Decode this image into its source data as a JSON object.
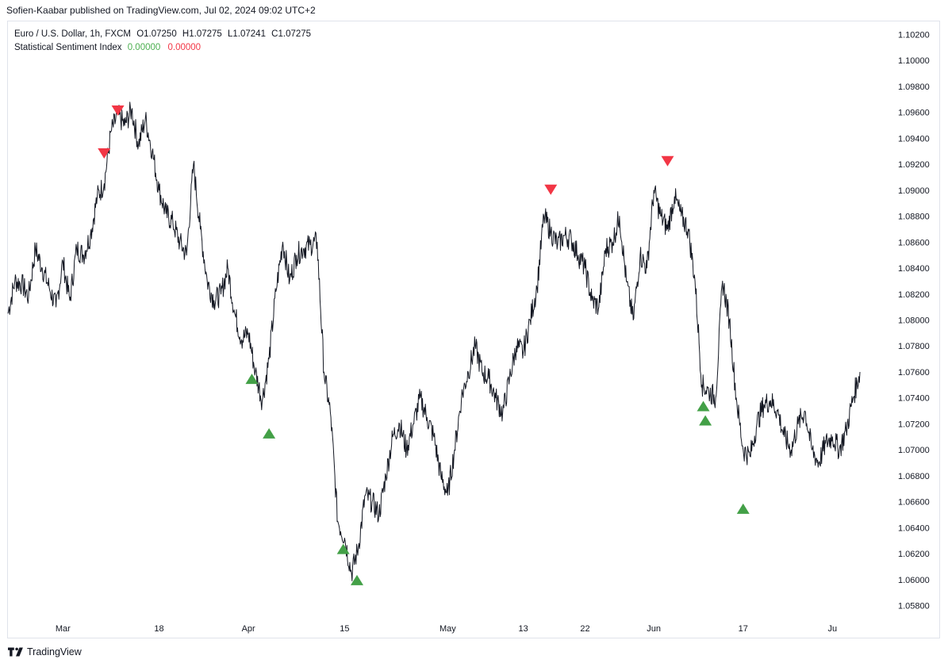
{
  "header": {
    "published_by": "Sofien-Kaabar published on TradingView.com, Jul 02, 2024 09:02 UTC+2"
  },
  "legend": {
    "symbol": "Euro / U.S. Dollar, 1h, FXCM",
    "ohlc": {
      "o": "O1.07250",
      "h": "H1.07275",
      "l": "L1.07241",
      "c": "C1.07275"
    },
    "indicator_name": "Statistical Sentiment Index",
    "indicator_value_1": "0.00000",
    "indicator_value_2": "0.00000"
  },
  "footer": {
    "brand": "TradingView"
  },
  "colors": {
    "line": "#131722",
    "bull": "#43a047",
    "bear": "#f23645",
    "grid": "#e0e3eb"
  },
  "chart_data": {
    "type": "line",
    "y_ticks": [
      "1.10200",
      "1.10000",
      "1.09800",
      "1.09600",
      "1.09400",
      "1.09200",
      "1.09000",
      "1.08800",
      "1.08600",
      "1.08400",
      "1.08200",
      "1.08000",
      "1.07800",
      "1.07600",
      "1.07400",
      "1.07200",
      "1.07000",
      "1.06800",
      "1.06600",
      "1.06400",
      "1.06200",
      "1.06000",
      "1.05800"
    ],
    "ylim": [
      1.057,
      1.103
    ],
    "xlim": [
      0,
      127
    ],
    "x_ticks": [
      {
        "label": "Mar",
        "x": 8
      },
      {
        "label": "18",
        "x": 22
      },
      {
        "label": "Apr",
        "x": 35
      },
      {
        "label": "15",
        "x": 49
      },
      {
        "label": "May",
        "x": 64
      },
      {
        "label": "13",
        "x": 75
      },
      {
        "label": "22",
        "x": 84
      },
      {
        "label": "Jun",
        "x": 94
      },
      {
        "label": "17",
        "x": 107
      },
      {
        "label": "Ju",
        "x": 120
      }
    ],
    "series": [
      {
        "values": [
          [
            0,
            1.0805
          ],
          [
            1,
            1.083
          ],
          [
            2,
            1.0828
          ],
          [
            3,
            1.0818
          ],
          [
            4,
            1.0855
          ],
          [
            5,
            1.084
          ],
          [
            6,
            1.0825
          ],
          [
            7,
            1.081
          ],
          [
            8,
            1.0845
          ],
          [
            9,
            1.0815
          ],
          [
            10,
            1.0855
          ],
          [
            11,
            1.085
          ],
          [
            12,
            1.0865
          ],
          [
            13,
            1.0895
          ],
          [
            14,
            1.0905
          ],
          [
            15,
            1.0945
          ],
          [
            16,
            1.0958
          ],
          [
            17,
            1.095
          ],
          [
            18,
            1.0962
          ],
          [
            19,
            1.0935
          ],
          [
            20,
            1.0955
          ],
          [
            21,
            1.093
          ],
          [
            22,
            1.09
          ],
          [
            23,
            1.0882
          ],
          [
            24,
            1.0875
          ],
          [
            25,
            1.086
          ],
          [
            26,
            1.085
          ],
          [
            27,
            1.092
          ],
          [
            28,
            1.087
          ],
          [
            29,
            1.083
          ],
          [
            30,
            1.0815
          ],
          [
            31,
            1.082
          ],
          [
            32,
            1.084
          ],
          [
            33,
            1.0805
          ],
          [
            34,
            1.0785
          ],
          [
            35,
            1.079
          ],
          [
            36,
            1.076
          ],
          [
            37,
            1.0738
          ],
          [
            38,
            1.077
          ],
          [
            39,
            1.0822
          ],
          [
            40,
            1.086
          ],
          [
            41,
            1.083
          ],
          [
            42,
            1.085
          ],
          [
            43,
            1.0855
          ],
          [
            44,
            1.0858
          ],
          [
            45,
            1.086
          ],
          [
            46,
            1.076
          ],
          [
            47,
            1.0725
          ],
          [
            48,
            1.0645
          ],
          [
            49,
            1.0632
          ],
          [
            50,
            1.0605
          ],
          [
            51,
            1.0625
          ],
          [
            52,
            1.0665
          ],
          [
            53,
            1.066
          ],
          [
            54,
            1.065
          ],
          [
            55,
            1.068
          ],
          [
            56,
            1.071
          ],
          [
            57,
            1.072
          ],
          [
            58,
            1.07
          ],
          [
            59,
            1.072
          ],
          [
            60,
            1.074
          ],
          [
            61,
            1.0725
          ],
          [
            62,
            1.071
          ],
          [
            63,
            1.068
          ],
          [
            64,
            1.0665
          ],
          [
            65,
            1.07
          ],
          [
            66,
            1.074
          ],
          [
            67,
            1.076
          ],
          [
            68,
            1.078
          ],
          [
            69,
            1.076
          ],
          [
            70,
            1.0755
          ],
          [
            71,
            1.074
          ],
          [
            72,
            1.0728
          ],
          [
            73,
            1.0755
          ],
          [
            74,
            1.078
          ],
          [
            75,
            1.0775
          ],
          [
            76,
            1.08
          ],
          [
            77,
            1.0825
          ],
          [
            78,
            1.088
          ],
          [
            79,
            1.0868
          ],
          [
            80,
            1.0858
          ],
          [
            81,
            1.0865
          ],
          [
            82,
            1.0862
          ],
          [
            83,
            1.085
          ],
          [
            84,
            1.084
          ],
          [
            85,
            1.0815
          ],
          [
            86,
            1.081
          ],
          [
            87,
            1.0855
          ],
          [
            88,
            1.086
          ],
          [
            89,
            1.088
          ],
          [
            90,
            1.083
          ],
          [
            91,
            1.08
          ],
          [
            92,
            1.085
          ],
          [
            93,
            1.084
          ],
          [
            94,
            1.09
          ],
          [
            95,
            1.088
          ],
          [
            96,
            1.087
          ],
          [
            97,
            1.0895
          ],
          [
            98,
            1.088
          ],
          [
            99,
            1.087
          ],
          [
            100,
            1.083
          ],
          [
            101,
            1.075
          ],
          [
            102,
            1.0745
          ],
          [
            103,
            1.074
          ],
          [
            104,
            1.083
          ],
          [
            105,
            1.08
          ],
          [
            106,
            1.074
          ],
          [
            107,
            1.07
          ],
          [
            108,
            1.0695
          ],
          [
            109,
            1.072
          ],
          [
            110,
            1.0735
          ],
          [
            111,
            1.0738
          ],
          [
            112,
            1.073
          ],
          [
            113,
            1.071
          ],
          [
            114,
            1.07
          ],
          [
            115,
            1.072
          ],
          [
            116,
            1.073
          ],
          [
            117,
            1.07
          ],
          [
            118,
            1.069
          ],
          [
            119,
            1.0705
          ],
          [
            120,
            1.071
          ],
          [
            121,
            1.07
          ],
          [
            122,
            1.0715
          ],
          [
            123,
            1.074
          ],
          [
            124,
            1.076
          ]
        ]
      }
    ],
    "signals": [
      {
        "type": "sell",
        "x": 14,
        "y": 1.0928
      },
      {
        "type": "sell",
        "x": 16,
        "y": 1.0961
      },
      {
        "type": "buy",
        "x": 35.5,
        "y": 1.0755
      },
      {
        "type": "buy",
        "x": 38,
        "y": 1.0713
      },
      {
        "type": "buy",
        "x": 48.8,
        "y": 1.0624
      },
      {
        "type": "buy",
        "x": 50.8,
        "y": 1.06
      },
      {
        "type": "sell",
        "x": 79,
        "y": 1.09
      },
      {
        "type": "sell",
        "x": 96,
        "y": 1.0922
      },
      {
        "type": "buy",
        "x": 101.2,
        "y": 1.0734
      },
      {
        "type": "buy",
        "x": 101.5,
        "y": 1.0723
      },
      {
        "type": "buy",
        "x": 107,
        "y": 1.0655
      }
    ]
  }
}
